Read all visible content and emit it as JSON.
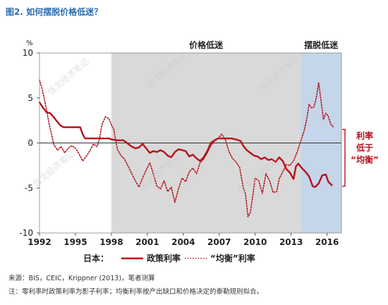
{
  "figure_title": "图2. 如何摆脱价格低迷？",
  "source_note": "来源：BIS，CEIC，Krippner (2013)，笔者测算",
  "footnote": "注：零利率时政策利率为影子利率；均衡利率按产出缺口和价格决定的泰勒规则拟合。",
  "watermark": "伍戈经济笔记",
  "colors": {
    "policy": "#b5121b",
    "gray_shade": "#d9d9d9",
    "blue_shade": "#c5d5ea",
    "title": "#2a6db0"
  },
  "chart_data": {
    "type": "line",
    "ylabel": "%",
    "ylim": [
      -10,
      10
    ],
    "yticks": [
      -10,
      -5,
      0,
      5,
      10
    ],
    "xlim": [
      1992,
      2017.2
    ],
    "xticks": [
      1992,
      1995,
      1998,
      2001,
      2004,
      2007,
      2010,
      2013,
      2016
    ],
    "legend_prefix": "日本：",
    "regions": [
      {
        "label": "价格低迷",
        "start": 1998,
        "end": 2013.8,
        "color": "gray"
      },
      {
        "label": "摆脱低迷",
        "start": 2013.8,
        "end": 2017.2,
        "color": "blue"
      }
    ],
    "annotation": {
      "lines": [
        "利率",
        "低于",
        "“均衡”"
      ]
    },
    "series": [
      {
        "name": "政策利率",
        "style": "solid",
        "points": [
          [
            1992.0,
            4.5
          ],
          [
            1992.3,
            3.9
          ],
          [
            1992.6,
            3.4
          ],
          [
            1992.9,
            3.3
          ],
          [
            1993.1,
            3.0
          ],
          [
            1993.4,
            2.5
          ],
          [
            1993.7,
            2.0
          ],
          [
            1994.0,
            1.75
          ],
          [
            1994.5,
            1.75
          ],
          [
            1995.0,
            1.75
          ],
          [
            1995.4,
            1.75
          ],
          [
            1995.6,
            1.0
          ],
          [
            1995.8,
            0.5
          ],
          [
            1996.0,
            0.5
          ],
          [
            1997.0,
            0.5
          ],
          [
            1997.8,
            0.5
          ],
          [
            1998.0,
            0.4
          ],
          [
            1998.5,
            0.3
          ],
          [
            1999.0,
            0.3
          ],
          [
            1999.3,
            0.0
          ],
          [
            1999.7,
            -0.4
          ],
          [
            2000.0,
            -0.6
          ],
          [
            2000.3,
            -0.5
          ],
          [
            2000.6,
            -0.1
          ],
          [
            2000.9,
            -0.6
          ],
          [
            2001.2,
            -1.1
          ],
          [
            2001.5,
            -0.9
          ],
          [
            2001.8,
            -1.0
          ],
          [
            2002.1,
            -0.8
          ],
          [
            2002.4,
            -1.0
          ],
          [
            2002.7,
            -1.4
          ],
          [
            2003.0,
            -1.6
          ],
          [
            2003.3,
            -1.0
          ],
          [
            2003.6,
            -0.7
          ],
          [
            2003.9,
            -0.8
          ],
          [
            2004.2,
            -0.9
          ],
          [
            2004.5,
            -1.5
          ],
          [
            2004.8,
            -1.3
          ],
          [
            2005.1,
            -1.7
          ],
          [
            2005.4,
            -2.0
          ],
          [
            2005.7,
            -1.6
          ],
          [
            2006.0,
            -0.9
          ],
          [
            2006.3,
            0.0
          ],
          [
            2006.6,
            0.3
          ],
          [
            2006.9,
            0.5
          ],
          [
            2007.1,
            0.5
          ],
          [
            2007.5,
            0.5
          ],
          [
            2008.0,
            0.5
          ],
          [
            2008.4,
            0.4
          ],
          [
            2008.8,
            0.2
          ],
          [
            2009.0,
            -0.3
          ],
          [
            2009.3,
            -0.8
          ],
          [
            2009.6,
            -1.1
          ],
          [
            2009.9,
            -1.4
          ],
          [
            2010.2,
            -1.5
          ],
          [
            2010.5,
            -1.8
          ],
          [
            2010.8,
            -1.6
          ],
          [
            2011.1,
            -1.9
          ],
          [
            2011.4,
            -1.8
          ],
          [
            2011.7,
            -2.1
          ],
          [
            2012.0,
            -1.6
          ],
          [
            2012.3,
            -2.0
          ],
          [
            2012.6,
            -2.9
          ],
          [
            2012.9,
            -3.3
          ],
          [
            2013.2,
            -4.0
          ],
          [
            2013.4,
            -2.6
          ],
          [
            2013.6,
            -2.3
          ],
          [
            2013.9,
            -2.8
          ],
          [
            2014.2,
            -3.2
          ],
          [
            2014.5,
            -3.7
          ],
          [
            2014.8,
            -4.8
          ],
          [
            2015.0,
            -4.9
          ],
          [
            2015.3,
            -4.5
          ],
          [
            2015.6,
            -3.6
          ],
          [
            2015.9,
            -3.5
          ],
          [
            2016.1,
            -4.3
          ],
          [
            2016.4,
            -4.7
          ]
        ]
      },
      {
        "name": "“均衡”利率",
        "style": "dotted",
        "points": [
          [
            1992.0,
            7.0
          ],
          [
            1992.2,
            6.1
          ],
          [
            1992.4,
            4.9
          ],
          [
            1992.6,
            3.6
          ],
          [
            1992.8,
            2.1
          ],
          [
            1993.0,
            1.0
          ],
          [
            1993.2,
            -0.2
          ],
          [
            1993.5,
            -0.8
          ],
          [
            1993.8,
            -0.4
          ],
          [
            1994.1,
            -1.1
          ],
          [
            1994.4,
            -0.6
          ],
          [
            1994.7,
            -0.3
          ],
          [
            1995.0,
            -0.6
          ],
          [
            1995.3,
            -1.2
          ],
          [
            1995.6,
            -2.0
          ],
          [
            1995.9,
            -1.5
          ],
          [
            1996.2,
            -0.9
          ],
          [
            1996.5,
            -0.1
          ],
          [
            1996.8,
            -0.4
          ],
          [
            1997.0,
            0.4
          ],
          [
            1997.2,
            2.0
          ],
          [
            1997.5,
            2.9
          ],
          [
            1997.8,
            2.7
          ],
          [
            1998.0,
            2.0
          ],
          [
            1998.2,
            1.5
          ],
          [
            1998.5,
            -0.7
          ],
          [
            1998.8,
            -1.4
          ],
          [
            1999.1,
            -1.8
          ],
          [
            1999.4,
            -2.6
          ],
          [
            1999.7,
            -3.4
          ],
          [
            2000.0,
            -4.2
          ],
          [
            2000.3,
            -4.9
          ],
          [
            2000.6,
            -3.9
          ],
          [
            2000.9,
            -3.0
          ],
          [
            2001.2,
            -2.2
          ],
          [
            2001.5,
            -3.4
          ],
          [
            2001.8,
            -4.8
          ],
          [
            2002.1,
            -5.1
          ],
          [
            2002.4,
            -4.2
          ],
          [
            2002.7,
            -5.4
          ],
          [
            2003.0,
            -4.9
          ],
          [
            2003.3,
            -6.6
          ],
          [
            2003.6,
            -5.1
          ],
          [
            2003.9,
            -3.9
          ],
          [
            2004.2,
            -4.3
          ],
          [
            2004.5,
            -3.2
          ],
          [
            2004.8,
            -2.8
          ],
          [
            2005.1,
            -3.4
          ],
          [
            2005.4,
            -2.2
          ],
          [
            2005.7,
            -1.8
          ],
          [
            2006.0,
            -1.1
          ],
          [
            2006.3,
            -0.3
          ],
          [
            2006.6,
            0.2
          ],
          [
            2006.9,
            0.5
          ],
          [
            2007.2,
            1.0
          ],
          [
            2007.5,
            0.4
          ],
          [
            2007.8,
            -0.9
          ],
          [
            2008.1,
            -1.7
          ],
          [
            2008.4,
            -2.1
          ],
          [
            2008.7,
            -2.7
          ],
          [
            2009.0,
            -4.9
          ],
          [
            2009.2,
            -5.7
          ],
          [
            2009.4,
            -8.2
          ],
          [
            2009.6,
            -7.7
          ],
          [
            2009.8,
            -5.9
          ],
          [
            2010.0,
            -3.9
          ],
          [
            2010.3,
            -4.2
          ],
          [
            2010.6,
            -5.6
          ],
          [
            2010.9,
            -3.4
          ],
          [
            2011.2,
            -4.2
          ],
          [
            2011.5,
            -5.5
          ],
          [
            2011.8,
            -5.4
          ],
          [
            2012.0,
            -4.0
          ],
          [
            2012.3,
            -3.2
          ],
          [
            2012.6,
            -2.4
          ],
          [
            2012.9,
            -2.5
          ],
          [
            2013.2,
            -2.0
          ],
          [
            2013.5,
            -1.0
          ],
          [
            2013.8,
            0.2
          ],
          [
            2014.1,
            1.4
          ],
          [
            2014.3,
            2.6
          ],
          [
            2014.5,
            4.3
          ],
          [
            2014.7,
            3.9
          ],
          [
            2014.9,
            4.0
          ],
          [
            2015.1,
            5.0
          ],
          [
            2015.3,
            6.7
          ],
          [
            2015.5,
            4.7
          ],
          [
            2015.7,
            2.6
          ],
          [
            2015.9,
            3.3
          ],
          [
            2016.1,
            3.0
          ],
          [
            2016.3,
            2.1
          ],
          [
            2016.5,
            1.8
          ]
        ]
      }
    ]
  }
}
